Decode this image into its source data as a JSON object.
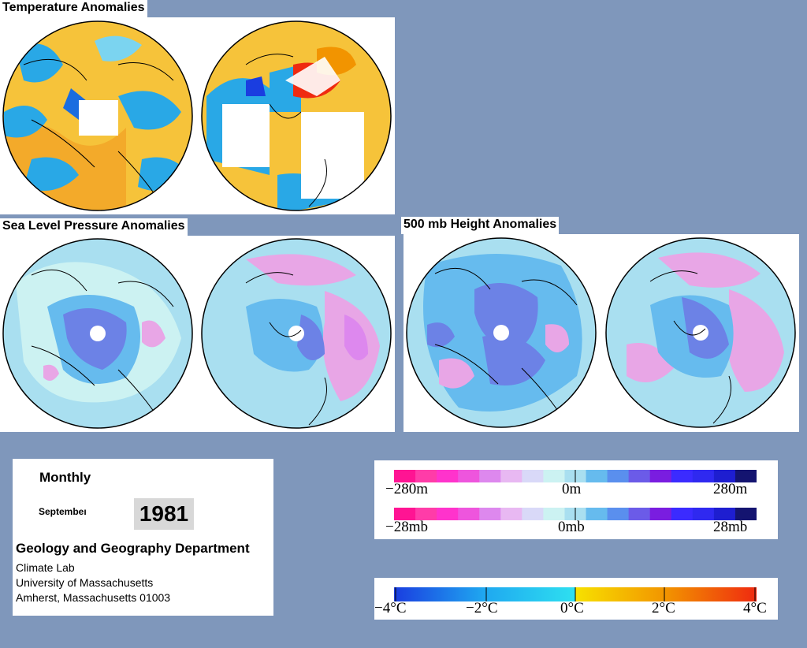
{
  "titles": {
    "temperature": "Temperature Anomalies",
    "slp": "Sea Level Pressure Anomalies",
    "height500": "500 mb Height Anomalies"
  },
  "info": {
    "heading": "Monthly",
    "month": "Septembeı",
    "year": "1981",
    "department": "Geology and Geography Department",
    "lab": "Climate Lab",
    "university": "University of Massachusetts",
    "address": "Amherst, Massachusetts 01003"
  },
  "legend_height": {
    "left": "−280m",
    "center": "0m",
    "right": "280m"
  },
  "legend_pressure": {
    "left": "−28mb",
    "center": "0mb",
    "right": "28mb"
  },
  "legend_temperature": {
    "l1": "−4°C",
    "l2": "−2°C",
    "l3": "0°C",
    "l4": "2°C",
    "l5": "4°C"
  },
  "colors": {
    "background": "#7f97bb",
    "warm": "#f6c33a",
    "cool": "#29a8e6",
    "positive_anomaly": "#e8a6e6",
    "negative_anomaly": "#6c82e6",
    "slp_scale": [
      "#ff1493",
      "#ff3ca8",
      "#ff33cc",
      "#ee55dd",
      "#dd88ee",
      "#e8b8f2",
      "#d9d9f8",
      "#ccf2f2",
      "#a9dff0",
      "#66bbee",
      "#5a8fee",
      "#6b5be8",
      "#7a1de0",
      "#3b2bff",
      "#2f29f0",
      "#1e1ed0",
      "#141470"
    ],
    "temp_scale": [
      "#1a3de0",
      "#1fa8f0",
      "#2ee0f0",
      "#f7e100",
      "#f29400",
      "#ef2a10"
    ]
  }
}
